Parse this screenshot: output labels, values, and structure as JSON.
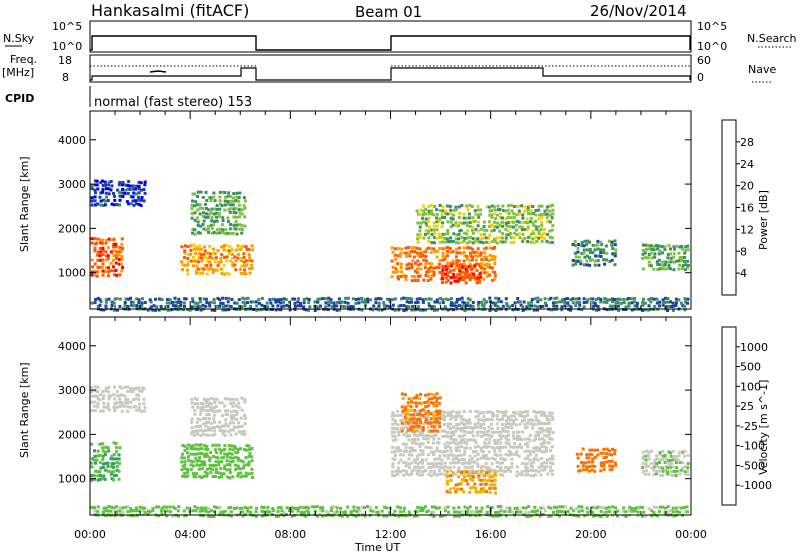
{
  "header": {
    "station": "Hankasalmi (fitACF)",
    "beam": "Beam 01",
    "date": "26/Nov/2014"
  },
  "params": {
    "nsky_label": "N.Sky",
    "nsky_ticks": [
      "10^5",
      "10^0"
    ],
    "nsearch_label": "N.Search",
    "nsearch_ticks": [
      "10^5",
      "10^0"
    ],
    "freq_label_line1": "Freq.",
    "freq_label_line2": "[MHz]",
    "freq_ticks": [
      "18",
      "8"
    ],
    "nave_label": "Nave",
    "nave_ticks": [
      "60",
      "0"
    ],
    "cpid_label": "CPID",
    "cpid_text": "normal (fast stereo) 153"
  },
  "colors": {
    "frame": "#000000",
    "gate_gray": "#c8c8c0"
  },
  "chart_data": [
    {
      "type": "heatmap",
      "panel": "power",
      "ylabel": "Slant Range [km]",
      "xlabel": "Time UT",
      "x_ticks": [
        "00:00",
        "04:00",
        "08:00",
        "12:00",
        "16:00",
        "20:00",
        "00:00"
      ],
      "x_range_hours": [
        0,
        24
      ],
      "y_ticks": [
        1000,
        2000,
        3000,
        4000
      ],
      "ylim": [
        180,
        4650
      ],
      "data_gaps_hours": [
        [
          6.5,
          12.0
        ]
      ],
      "colorbar": {
        "label": "Power [dB]",
        "ticks": [
          28,
          24,
          20,
          16,
          12,
          8,
          4
        ],
        "colors": [
          "#ff0000",
          "#ff5a00",
          "#ff9a00",
          "#f0d000",
          "#80c040",
          "#3a9060",
          "#2040a0",
          "#0000ff"
        ]
      },
      "blobs": [
        {
          "t0": 0.0,
          "t1": 1.3,
          "r0": 950,
          "r1": 1850,
          "level": 26
        },
        {
          "t0": 0.0,
          "t1": 2.2,
          "r0": 2550,
          "r1": 3150,
          "level": 5
        },
        {
          "t0": 3.6,
          "t1": 6.5,
          "r0": 1000,
          "r1": 1700,
          "level": 22
        },
        {
          "t0": 4.0,
          "t1": 6.2,
          "r0": 1900,
          "r1": 2900,
          "level": 12
        },
        {
          "t0": 12.0,
          "t1": 16.2,
          "r0": 850,
          "r1": 1650,
          "level": 24
        },
        {
          "t0": 14.0,
          "t1": 15.6,
          "r0": 800,
          "r1": 1250,
          "level": 28
        },
        {
          "t0": 13.0,
          "t1": 18.5,
          "r0": 1700,
          "r1": 2600,
          "level": 14
        },
        {
          "t0": 19.2,
          "t1": 21.0,
          "r0": 1200,
          "r1": 1800,
          "level": 10
        },
        {
          "t0": 22.0,
          "t1": 23.9,
          "r0": 1100,
          "r1": 1700,
          "level": 12
        },
        {
          "t0": 0.0,
          "t1": 24.0,
          "r0": 180,
          "r1": 500,
          "level": 8
        }
      ]
    },
    {
      "type": "heatmap",
      "panel": "velocity",
      "ylabel": "Slant Range [km]",
      "xlabel": "Time UT",
      "x_ticks": [
        "00:00",
        "04:00",
        "08:00",
        "12:00",
        "16:00",
        "20:00",
        "00:00"
      ],
      "x_range_hours": [
        0,
        24
      ],
      "y_ticks": [
        1000,
        2000,
        3000,
        4000
      ],
      "ylim": [
        180,
        4650
      ],
      "colorbar": {
        "label": "Velocity  [m s^-1]",
        "ticks": [
          "1000",
          "500",
          "100",
          "25",
          "-25",
          "-100",
          "-500",
          "-1000"
        ],
        "colors": [
          "#0030c0",
          "#2060a0",
          "#30a060",
          "#60c040",
          "#c8c8c0",
          "#f0b000",
          "#ff7000",
          "#ff3000",
          "#ff0000"
        ]
      },
      "blobs": [
        {
          "t0": 0.0,
          "t1": 1.2,
          "r0": 1000,
          "r1": 1900,
          "level": 100
        },
        {
          "t0": 0.0,
          "t1": 2.2,
          "r0": 2550,
          "r1": 3150,
          "level": 0
        },
        {
          "t0": 3.6,
          "t1": 6.5,
          "r0": 1050,
          "r1": 1850,
          "level": 60
        },
        {
          "t0": 4.0,
          "t1": 6.2,
          "r0": 2000,
          "r1": 2900,
          "level": 0
        },
        {
          "t0": 12.0,
          "t1": 18.5,
          "r0": 1100,
          "r1": 2600,
          "level": 0
        },
        {
          "t0": 14.2,
          "t1": 16.2,
          "r0": 700,
          "r1": 1250,
          "level": -80
        },
        {
          "t0": 12.4,
          "t1": 14.0,
          "r0": 2100,
          "r1": 3000,
          "level": -150
        },
        {
          "t0": 19.4,
          "t1": 21.0,
          "r0": 1200,
          "r1": 1750,
          "level": -200
        },
        {
          "t0": 22.0,
          "t1": 23.9,
          "r0": 1100,
          "r1": 1700,
          "level": 20
        },
        {
          "t0": 0.0,
          "t1": 24.0,
          "r0": 180,
          "r1": 450,
          "level": 40
        }
      ]
    }
  ]
}
